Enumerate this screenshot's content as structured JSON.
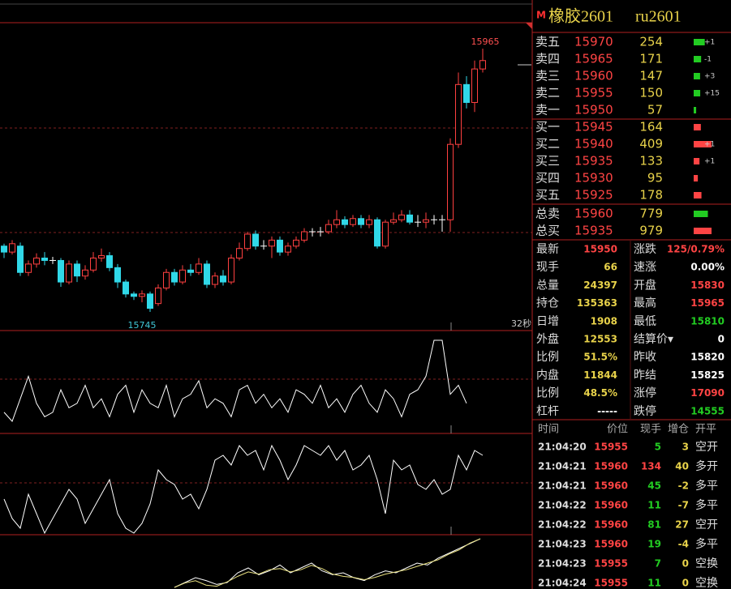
{
  "header": {
    "icon": "M",
    "title": "橡胶2601",
    "code": "ru2601"
  },
  "chart": {
    "type": "candlestick",
    "high_label": 15965,
    "low_label": 15745,
    "timer": "32秒",
    "candles": [
      {
        "o": 15800,
        "h": 15802,
        "l": 15790,
        "c": 15795
      },
      {
        "o": 15795,
        "h": 15805,
        "l": 15793,
        "c": 15802
      },
      {
        "o": 15800,
        "h": 15803,
        "l": 15775,
        "c": 15778
      },
      {
        "o": 15778,
        "h": 15788,
        "l": 15775,
        "c": 15785
      },
      {
        "o": 15785,
        "h": 15794,
        "l": 15782,
        "c": 15790
      },
      {
        "o": 15790,
        "h": 15795,
        "l": 15784,
        "c": 15788
      },
      {
        "o": 15788,
        "h": 15791,
        "l": 15785,
        "c": 15788
      },
      {
        "o": 15788,
        "h": 15790,
        "l": 15766,
        "c": 15770
      },
      {
        "o": 15770,
        "h": 15788,
        "l": 15768,
        "c": 15785
      },
      {
        "o": 15785,
        "h": 15788,
        "l": 15770,
        "c": 15775
      },
      {
        "o": 15775,
        "h": 15784,
        "l": 15772,
        "c": 15780
      },
      {
        "o": 15780,
        "h": 15795,
        "l": 15778,
        "c": 15790
      },
      {
        "o": 15790,
        "h": 15798,
        "l": 15787,
        "c": 15792
      },
      {
        "o": 15792,
        "h": 15795,
        "l": 15779,
        "c": 15782
      },
      {
        "o": 15782,
        "h": 15785,
        "l": 15765,
        "c": 15770
      },
      {
        "o": 15770,
        "h": 15772,
        "l": 15757,
        "c": 15760
      },
      {
        "o": 15760,
        "h": 15762,
        "l": 15755,
        "c": 15758
      },
      {
        "o": 15758,
        "h": 15763,
        "l": 15753,
        "c": 15760
      },
      {
        "o": 15760,
        "h": 15762,
        "l": 15745,
        "c": 15748
      },
      {
        "o": 15752,
        "h": 15768,
        "l": 15750,
        "c": 15765
      },
      {
        "o": 15765,
        "h": 15781,
        "l": 15763,
        "c": 15778
      },
      {
        "o": 15778,
        "h": 15781,
        "l": 15767,
        "c": 15770
      },
      {
        "o": 15770,
        "h": 15784,
        "l": 15768,
        "c": 15780
      },
      {
        "o": 15780,
        "h": 15785,
        "l": 15775,
        "c": 15778
      },
      {
        "o": 15778,
        "h": 15790,
        "l": 15776,
        "c": 15785
      },
      {
        "o": 15785,
        "h": 15788,
        "l": 15765,
        "c": 15768
      },
      {
        "o": 15768,
        "h": 15778,
        "l": 15765,
        "c": 15775
      },
      {
        "o": 15775,
        "h": 15780,
        "l": 15767,
        "c": 15770
      },
      {
        "o": 15770,
        "h": 15793,
        "l": 15768,
        "c": 15790
      },
      {
        "o": 15790,
        "h": 15803,
        "l": 15788,
        "c": 15798
      },
      {
        "o": 15798,
        "h": 15812,
        "l": 15796,
        "c": 15810
      },
      {
        "o": 15810,
        "h": 15813,
        "l": 15797,
        "c": 15800
      },
      {
        "o": 15800,
        "h": 15805,
        "l": 15797,
        "c": 15800
      },
      {
        "o": 15800,
        "h": 15808,
        "l": 15790,
        "c": 15805
      },
      {
        "o": 15805,
        "h": 15808,
        "l": 15792,
        "c": 15795
      },
      {
        "o": 15795,
        "h": 15803,
        "l": 15792,
        "c": 15800
      },
      {
        "o": 15800,
        "h": 15808,
        "l": 15798,
        "c": 15805
      },
      {
        "o": 15805,
        "h": 15815,
        "l": 15803,
        "c": 15812
      },
      {
        "o": 15812,
        "h": 15815,
        "l": 15808,
        "c": 15812
      },
      {
        "o": 15812,
        "h": 15816,
        "l": 15808,
        "c": 15812
      },
      {
        "o": 15812,
        "h": 15822,
        "l": 15810,
        "c": 15818
      },
      {
        "o": 15818,
        "h": 15830,
        "l": 15815,
        "c": 15822
      },
      {
        "o": 15822,
        "h": 15825,
        "l": 15815,
        "c": 15818
      },
      {
        "o": 15818,
        "h": 15826,
        "l": 15816,
        "c": 15823
      },
      {
        "o": 15823,
        "h": 15826,
        "l": 15815,
        "c": 15818
      },
      {
        "o": 15818,
        "h": 15826,
        "l": 15815,
        "c": 15822
      },
      {
        "o": 15822,
        "h": 15824,
        "l": 15798,
        "c": 15800
      },
      {
        "o": 15800,
        "h": 15822,
        "l": 15798,
        "c": 15820
      },
      {
        "o": 15820,
        "h": 15828,
        "l": 15818,
        "c": 15822
      },
      {
        "o": 15822,
        "h": 15830,
        "l": 15820,
        "c": 15826
      },
      {
        "o": 15826,
        "h": 15830,
        "l": 15818,
        "c": 15820
      },
      {
        "o": 15820,
        "h": 15826,
        "l": 15816,
        "c": 15820
      },
      {
        "o": 15820,
        "h": 15828,
        "l": 15815,
        "c": 15822
      },
      {
        "o": 15822,
        "h": 15826,
        "l": 15818,
        "c": 15822
      },
      {
        "o": 15822,
        "h": 15826,
        "l": 15812,
        "c": 15822
      },
      {
        "o": 15822,
        "h": 15890,
        "l": 15812,
        "c": 15885
      },
      {
        "o": 15885,
        "h": 15945,
        "l": 15882,
        "c": 15935
      },
      {
        "o": 15935,
        "h": 15942,
        "l": 15915,
        "c": 15920
      },
      {
        "o": 15920,
        "h": 15955,
        "l": 15912,
        "c": 15948
      },
      {
        "o": 15948,
        "h": 15965,
        "l": 15945,
        "c": 15955
      }
    ],
    "indicators": [
      {
        "color": "#ffffff",
        "values": [
          15,
          5,
          30,
          55,
          25,
          10,
          15,
          40,
          20,
          25,
          45,
          20,
          30,
          10,
          35,
          45,
          15,
          40,
          25,
          20,
          45,
          10,
          30,
          35,
          50,
          20,
          30,
          25,
          10,
          40,
          45,
          25,
          35,
          20,
          30,
          15,
          40,
          35,
          25,
          45,
          20,
          30,
          15,
          35,
          45,
          25,
          15,
          40,
          30,
          10,
          35,
          40,
          55,
          95,
          95,
          35,
          45,
          25
        ]
      },
      {
        "color": "#ffffff",
        "values": [
          40,
          20,
          10,
          45,
          25,
          5,
          20,
          35,
          50,
          40,
          15,
          30,
          45,
          60,
          25,
          10,
          5,
          15,
          35,
          70,
          60,
          55,
          40,
          45,
          30,
          50,
          80,
          85,
          75,
          95,
          85,
          90,
          70,
          95,
          80,
          60,
          75,
          95,
          90,
          85,
          95,
          80,
          90,
          70,
          75,
          85,
          60,
          25,
          80,
          70,
          75,
          55,
          50,
          60,
          45,
          50,
          85,
          70,
          90,
          85
        ]
      },
      {
        "color": "#ffffff",
        "values": [
          5,
          10,
          15,
          12,
          8,
          10,
          20,
          25,
          18,
          22,
          28,
          20,
          25,
          30,
          22,
          18,
          20,
          15,
          12,
          18,
          22,
          20,
          25,
          30,
          28,
          35,
          40,
          45,
          50,
          55
        ]
      },
      {
        "color": "#e8e080",
        "values": [
          8,
          12,
          14,
          10,
          9,
          13,
          18,
          22,
          20,
          24,
          25,
          22,
          24,
          28,
          25,
          20,
          18,
          17,
          15,
          17,
          20,
          22,
          24,
          27,
          30,
          33,
          38,
          42,
          48,
          52
        ]
      }
    ]
  },
  "order_book": {
    "asks": [
      {
        "label": "卖五",
        "price": 15970,
        "volume": 254,
        "change": "+1"
      },
      {
        "label": "卖四",
        "price": 15965,
        "volume": 171,
        "change": "-1"
      },
      {
        "label": "卖三",
        "price": 15960,
        "volume": 147,
        "change": "+3"
      },
      {
        "label": "卖二",
        "price": 15955,
        "volume": 150,
        "change": "+15"
      },
      {
        "label": "卖一",
        "price": 15950,
        "volume": 57
      }
    ],
    "bids": [
      {
        "label": "买一",
        "price": 15945,
        "volume": 164
      },
      {
        "label": "买二",
        "price": 15940,
        "volume": 409,
        "change": "+1"
      },
      {
        "label": "买三",
        "price": 15935,
        "volume": 133,
        "change": "+1"
      },
      {
        "label": "买四",
        "price": 15930,
        "volume": 95
      },
      {
        "label": "买五",
        "price": 15925,
        "volume": 178
      }
    ],
    "totals": [
      {
        "label": "总卖",
        "price": 15960,
        "volume": 779,
        "color": "#22cc22"
      },
      {
        "label": "总买",
        "price": 15935,
        "volume": 979,
        "color": "#ff4444"
      }
    ]
  },
  "stats": [
    [
      {
        "label": "最新",
        "value": "15950",
        "color": "#ff4444"
      },
      {
        "label": "涨跌",
        "value": "125/0.79%",
        "color": "#ff4444"
      }
    ],
    [
      {
        "label": "现手",
        "value": "66",
        "color": "#e8d24a"
      },
      {
        "label": "速涨",
        "value": "0.00%",
        "color": "#ffffff"
      }
    ],
    [
      {
        "label": "总量",
        "value": "24397",
        "color": "#e8d24a"
      },
      {
        "label": "开盘",
        "value": "15830",
        "color": "#ff4444"
      }
    ],
    [
      {
        "label": "持仓",
        "value": "135363",
        "color": "#e8d24a"
      },
      {
        "label": "最高",
        "value": "15965",
        "color": "#ff4444"
      }
    ],
    [
      {
        "label": "日增",
        "value": "1908",
        "color": "#e8d24a"
      },
      {
        "label": "最低",
        "value": "15810",
        "color": "#22cc22"
      }
    ],
    [
      {
        "label": "外盘",
        "value": "12553",
        "color": "#e8d24a"
      },
      {
        "label": "结算价▾",
        "value": "0",
        "color": "#ffffff"
      }
    ],
    [
      {
        "label": "比例",
        "value": "51.5%",
        "color": "#e8d24a"
      },
      {
        "label": "昨收",
        "value": "15820",
        "color": "#ffffff"
      }
    ],
    [
      {
        "label": "内盘",
        "value": "11844",
        "color": "#e8d24a"
      },
      {
        "label": "昨结",
        "value": "15825",
        "color": "#ffffff"
      }
    ],
    [
      {
        "label": "比例",
        "value": "48.5%",
        "color": "#e8d24a"
      },
      {
        "label": "涨停",
        "value": "17090",
        "color": "#ff4444"
      }
    ],
    [
      {
        "label": "杠杆",
        "value": "-----",
        "color": "#ffffff"
      },
      {
        "label": "跌停",
        "value": "14555",
        "color": "#22cc22"
      }
    ]
  ],
  "trades": {
    "headers": [
      "时间",
      "价位",
      "现手",
      "增仓",
      "开平"
    ],
    "rows": [
      {
        "time": "21:04:20",
        "price": 15955,
        "volume": 5,
        "oi": 3,
        "type": "空开",
        "color": "#22cc22"
      },
      {
        "time": "21:04:21",
        "price": 15960,
        "volume": 134,
        "oi": 40,
        "type": "多开",
        "color": "#ff4444"
      },
      {
        "time": "21:04:21",
        "price": 15960,
        "volume": 45,
        "oi": -2,
        "type": "多平",
        "color": "#22cc22"
      },
      {
        "time": "21:04:22",
        "price": 15960,
        "volume": 11,
        "oi": -7,
        "type": "多平",
        "color": "#22cc22"
      },
      {
        "time": "21:04:22",
        "price": 15960,
        "volume": 81,
        "oi": 27,
        "type": "空开",
        "color": "#22cc22"
      },
      {
        "time": "21:04:23",
        "price": 15960,
        "volume": 19,
        "oi": -4,
        "type": "多平",
        "color": "#22cc22"
      },
      {
        "time": "21:04:23",
        "price": 15955,
        "volume": 7,
        "oi": 0,
        "type": "空换",
        "color": "#22cc22"
      },
      {
        "time": "21:04:24",
        "price": 15955,
        "volume": 11,
        "oi": 0,
        "type": "空换",
        "color": "#22cc22"
      }
    ]
  }
}
